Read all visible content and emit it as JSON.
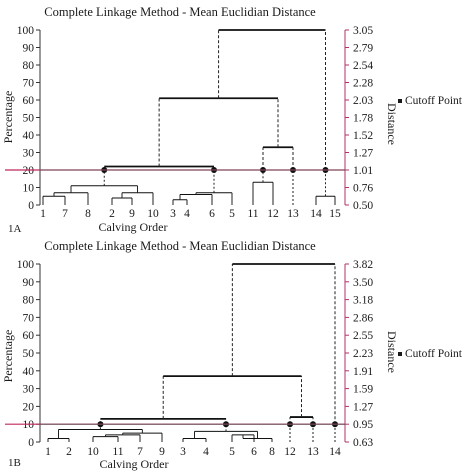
{
  "chart_data": [
    {
      "type": "dendrogram",
      "panel_label": "1A",
      "title": "Complete Linkage Method - Mean Euclidian Distance",
      "xlabel": "Calving Order",
      "ylabel": "Percentage",
      "ylabel_right": "Distance",
      "legend": "Cutoff Point",
      "y_ticks": [
        "100",
        "90",
        "80",
        "70",
        "60",
        "50",
        "40",
        "30",
        "20",
        "10",
        "0"
      ],
      "y2_ticks": [
        "3.05",
        "2.79",
        "2.54",
        "2.28",
        "2.03",
        "1.78",
        "1.52",
        "1.27",
        "1.01",
        "0.76",
        "0.50"
      ],
      "ylim": [
        0,
        100
      ],
      "cutoff_percentage": 20,
      "leaves": [
        "1",
        "7",
        "8",
        "2",
        "9",
        "10",
        "3",
        "4",
        "6",
        "5",
        "11",
        "12",
        "13",
        "14",
        "15"
      ],
      "merges": [
        {
          "left": [
            "1"
          ],
          "right": [
            "7"
          ],
          "height": 5
        },
        {
          "left": [
            "1",
            "7"
          ],
          "right": [
            "8"
          ],
          "height": 7
        },
        {
          "left": [
            "2"
          ],
          "right": [
            "9"
          ],
          "height": 4
        },
        {
          "left": [
            "2",
            "9"
          ],
          "right": [
            "10"
          ],
          "height": 7
        },
        {
          "left": [
            "1",
            "7",
            "8"
          ],
          "right": [
            "2",
            "9",
            "10"
          ],
          "height": 11
        },
        {
          "left": [
            "3"
          ],
          "right": [
            "4"
          ],
          "height": 3
        },
        {
          "left": [
            "3",
            "4"
          ],
          "right": [
            "6"
          ],
          "height": 6
        },
        {
          "left": [
            "3",
            "4",
            "6"
          ],
          "right": [
            "5"
          ],
          "height": 7
        },
        {
          "left": [
            "11"
          ],
          "right": [
            "12"
          ],
          "height": 13
        },
        {
          "left": [
            "14"
          ],
          "right": [
            "15"
          ],
          "height": 5
        },
        {
          "left": [
            "1",
            "7",
            "8",
            "2",
            "9",
            "10"
          ],
          "right": [
            "3",
            "4",
            "6",
            "5"
          ],
          "height": 22
        },
        {
          "left": [
            "11",
            "12"
          ],
          "right": [
            "13"
          ],
          "height": 33
        },
        {
          "left": [
            "1",
            "7",
            "8",
            "2",
            "9",
            "10",
            "3",
            "4",
            "6",
            "5"
          ],
          "right": [
            "11",
            "12",
            "13"
          ],
          "height": 61
        },
        {
          "left": [
            "1",
            "7",
            "8",
            "2",
            "9",
            "10",
            "3",
            "4",
            "6",
            "5",
            "11",
            "12",
            "13"
          ],
          "right": [
            "14",
            "15"
          ],
          "height": 100
        }
      ]
    },
    {
      "type": "dendrogram",
      "panel_label": "1B",
      "title": "Complete Linkage Method - Mean Euclidian Distance",
      "xlabel": "Calving Order",
      "ylabel": "Percentage",
      "ylabel_right": "Distance",
      "legend": "Cutoff Point",
      "y_ticks": [
        "100",
        "90",
        "80",
        "70",
        "60",
        "50",
        "40",
        "30",
        "20",
        "10",
        "0"
      ],
      "y2_ticks": [
        "3.82",
        "3.50",
        "3.18",
        "2.86",
        "2.55",
        "2.23",
        "1.91",
        "1.59",
        "1.27",
        "0.95",
        "0.63"
      ],
      "ylim": [
        0,
        100
      ],
      "cutoff_percentage": 10,
      "leaves": [
        "1",
        "2",
        "10",
        "11",
        "7",
        "9",
        "3",
        "4",
        "5",
        "6",
        "8",
        "12",
        "13",
        "14"
      ],
      "merges": [
        {
          "left": [
            "1"
          ],
          "right": [
            "2"
          ],
          "height": 2
        },
        {
          "left": [
            "10"
          ],
          "right": [
            "11"
          ],
          "height": 3
        },
        {
          "left": [
            "10",
            "11"
          ],
          "right": [
            "7"
          ],
          "height": 4
        },
        {
          "left": [
            "10",
            "11",
            "7"
          ],
          "right": [
            "9"
          ],
          "height": 5
        },
        {
          "left": [
            "1",
            "2"
          ],
          "right": [
            "10",
            "11",
            "7",
            "9"
          ],
          "height": 7
        },
        {
          "left": [
            "3"
          ],
          "right": [
            "4"
          ],
          "height": 2
        },
        {
          "left": [
            "5"
          ],
          "right": [
            "6"
          ],
          "height": 4
        },
        {
          "left": [
            "5",
            "6"
          ],
          "right": [
            "8"
          ],
          "height": 2
        },
        {
          "left": [
            "3",
            "4"
          ],
          "right": [
            "5",
            "6",
            "8"
          ],
          "height": 6
        },
        {
          "left": [
            "1",
            "2",
            "10",
            "11",
            "7",
            "9"
          ],
          "right": [
            "3",
            "4",
            "5",
            "6",
            "8"
          ],
          "height": 13
        },
        {
          "left": [
            "12"
          ],
          "right": [
            "13"
          ],
          "height": 14
        },
        {
          "left": [
            "1",
            "2",
            "10",
            "11",
            "7",
            "9",
            "3",
            "4",
            "5",
            "6",
            "8"
          ],
          "right": [
            "12",
            "13"
          ],
          "height": 37
        },
        {
          "left": [
            "1",
            "2",
            "10",
            "11",
            "7",
            "9",
            "3",
            "4",
            "5",
            "6",
            "8",
            "12",
            "13"
          ],
          "right": [
            "14"
          ],
          "height": 100
        }
      ]
    }
  ]
}
